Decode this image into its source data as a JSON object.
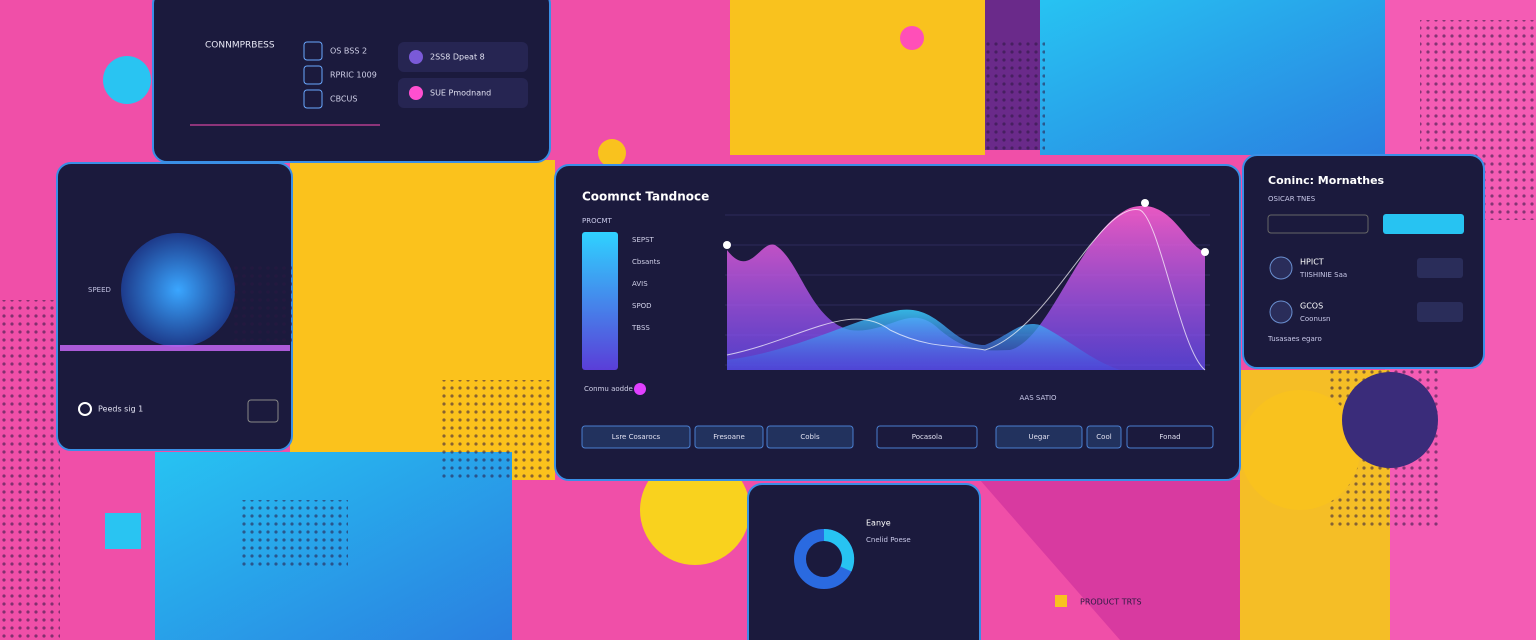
{
  "top_panel": {
    "title": "CONNMPRBESS",
    "items": [
      "OS BSS 2",
      "RPRIC 1009",
      "CBCUS"
    ],
    "buttons": [
      "2SS8 Dpeat 8",
      "SUE Pmodnand"
    ]
  },
  "left_panel": {
    "label": "SPEED",
    "footer": "Peeds sig 1"
  },
  "main_panel": {
    "title": "Coomnct Tandnoce",
    "legend_title": "PROCMT",
    "legend_labels": [
      "SEPST",
      "Cbsants",
      "AVIS",
      "SPOD",
      "TBSS"
    ],
    "legend_note": "Conmu aodde",
    "x_axis_label": "AAS SATIO",
    "buttons": [
      "Lsre Cosarocs",
      "Fresoane",
      "Cobls",
      "Pocasola",
      "Uegar",
      "Cool",
      "Fonad"
    ]
  },
  "right_panel": {
    "title": "Coninc: Mornathes",
    "subtitle": "OSICAR TNES",
    "rows": [
      {
        "name": "HPICT",
        "detail": "TIISHINIE Saa"
      },
      {
        "name": "GCOS",
        "detail": "Coonusn"
      }
    ],
    "footer": "Tusasaes egaro"
  },
  "bottom_panel": {
    "title": "Eanye",
    "subtitle": "Cnelid Poese"
  },
  "footer_label": "PRODUCT TRTS"
}
